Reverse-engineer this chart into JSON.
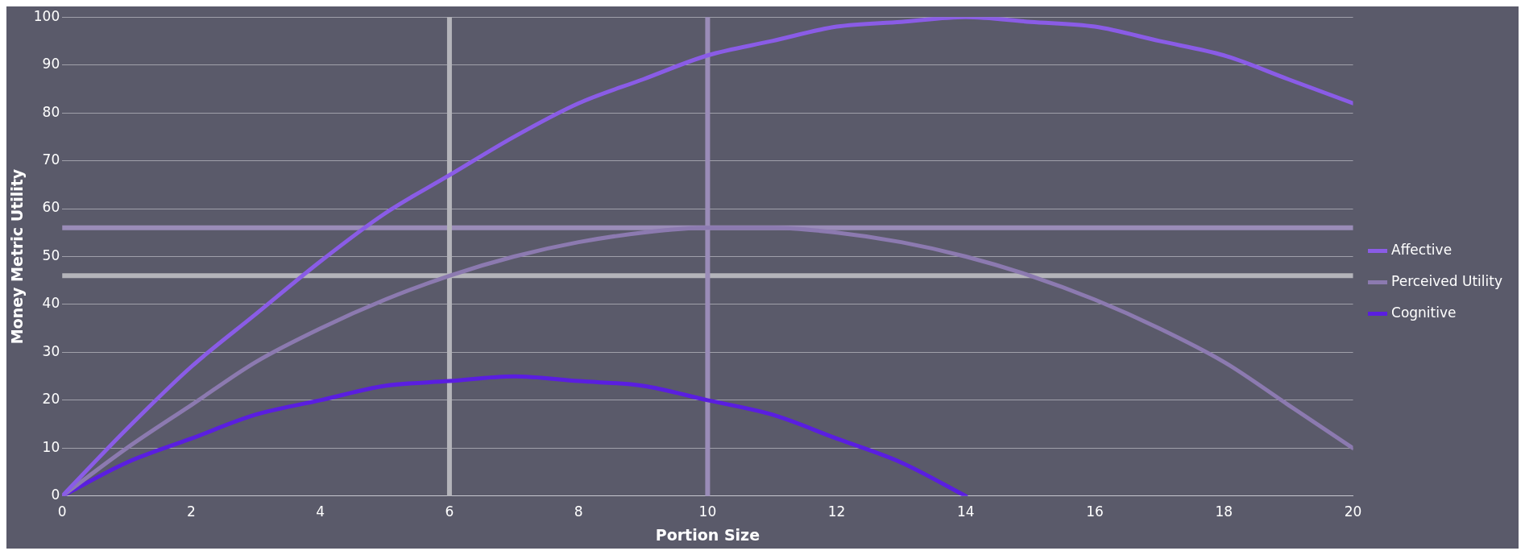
{
  "chart_data": {
    "type": "line",
    "xlabel": "Portion Size",
    "ylabel": "Money Metric Utility",
    "x": [
      0,
      1,
      2,
      3,
      4,
      5,
      6,
      7,
      8,
      9,
      10,
      11,
      12,
      13,
      14,
      15,
      16,
      17,
      18,
      19,
      20
    ],
    "series": [
      {
        "name": "Affective",
        "color": "#8a5ce6",
        "values": [
          0,
          14,
          27,
          38,
          49,
          59,
          67,
          75,
          82,
          87,
          92,
          95,
          98,
          99,
          100,
          99,
          98,
          95,
          92,
          87,
          82
        ]
      },
      {
        "name": "Perceived Utility",
        "color": "#8c7ab0",
        "values": [
          0,
          10,
          19,
          28,
          35,
          41,
          46,
          50,
          53,
          55,
          56,
          56,
          55,
          53,
          50,
          46,
          41,
          35,
          28,
          19,
          10
        ]
      },
      {
        "name": "Cognitive",
        "color": "#5a1ee0",
        "values": [
          0,
          7,
          12,
          17,
          20,
          23,
          24,
          25,
          24,
          23,
          20,
          17,
          12,
          7,
          0,
          null,
          null,
          null,
          null,
          null,
          null
        ]
      }
    ],
    "ref_lines": [
      {
        "axis": "y",
        "value": 56,
        "color": "#9a8cb8"
      },
      {
        "axis": "y",
        "value": 46,
        "color": "#b4b4ba"
      },
      {
        "axis": "x",
        "value": 6,
        "color": "#b4b4ba"
      },
      {
        "axis": "x",
        "value": 10,
        "color": "#9a8cb8"
      }
    ],
    "xlim": [
      0,
      20
    ],
    "xticks": [
      0,
      2,
      4,
      6,
      8,
      10,
      12,
      14,
      16,
      18,
      20
    ],
    "ylim": [
      0,
      100
    ],
    "yticks": [
      0,
      10,
      20,
      30,
      40,
      50,
      60,
      70,
      80,
      90,
      100
    ],
    "grid": "y",
    "legend": "right",
    "marker": "none",
    "line_style": "solid"
  }
}
